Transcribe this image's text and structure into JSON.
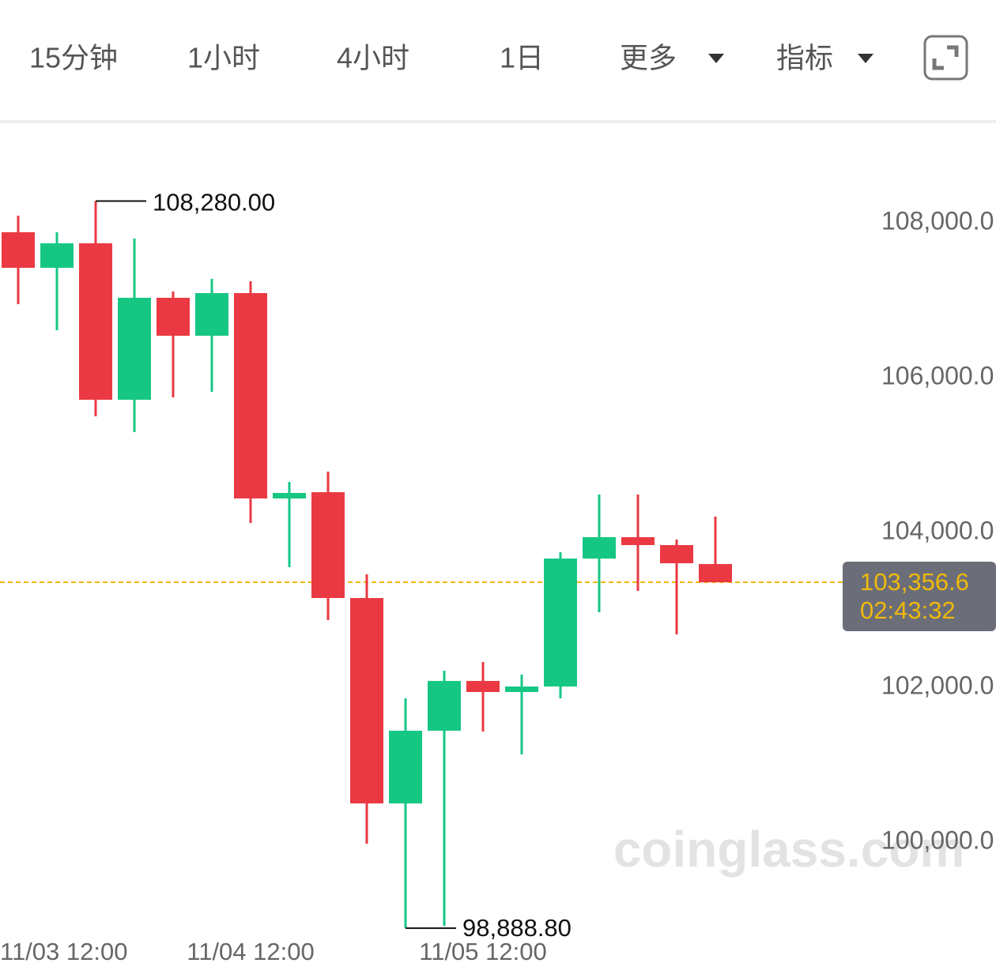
{
  "toolbar": {
    "tabs": [
      "15分钟",
      "1小时",
      "4小时",
      "1日",
      "更多",
      "指标"
    ],
    "active": 2
  },
  "chart_data": {
    "type": "candlestick",
    "categories": [
      "11/03 12:00",
      null,
      null,
      null,
      null,
      null,
      "11/04 12:00",
      null,
      null,
      null,
      null,
      null,
      "11/05 12:00",
      null,
      null,
      null,
      null,
      null,
      null
    ],
    "open": [
      107878,
      107418,
      107735,
      105714,
      107031,
      106541,
      107092,
      104439,
      104520,
      103153,
      100500,
      101439,
      102082,
      101939,
      102010,
      103663,
      103939,
      103837,
      103592
    ],
    "high": [
      108092,
      107878,
      108280,
      107796,
      107112,
      107276,
      107245,
      104653,
      104786,
      103459,
      101857,
      102214,
      102327,
      102163,
      103745,
      104490,
      104490,
      103908,
      104204
    ],
    "low": [
      106949,
      106612,
      105500,
      105296,
      105745,
      105816,
      104122,
      103551,
      102867,
      99980,
      98888.8,
      98918,
      101429,
      101133,
      101857,
      102969,
      103245,
      102684,
      103356.6
    ],
    "close": [
      107418,
      107735,
      105714,
      107031,
      106541,
      107092,
      104439,
      104510,
      103153,
      100500,
      101439,
      102082,
      101939,
      102010,
      103663,
      103939,
      103837,
      103602,
      103356.6
    ],
    "up_color": "#16c784",
    "down_color": "#ea3943",
    "ylim": [
      98400,
      109300
    ],
    "yticks": [
      {
        "value": 100000,
        "label": "100,000.0"
      },
      {
        "value": 102000,
        "label": "102,000.0"
      },
      {
        "value": 104000,
        "label": "104,000.0"
      },
      {
        "value": 106000,
        "label": "106,000.0"
      },
      {
        "value": 108000,
        "label": "108,000.0"
      }
    ],
    "max_label": {
      "value": 108280,
      "label": "108,280.00"
    },
    "min_label": {
      "value": 98888.8,
      "label": "98,888.80"
    },
    "last_price": {
      "value": 103356.6,
      "label": "103,356.6"
    },
    "countdown": "02:43:32",
    "watermark": "coinglass.com"
  }
}
